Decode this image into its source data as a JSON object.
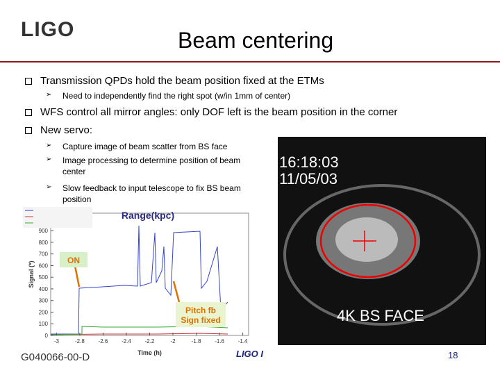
{
  "header": {
    "logo": "LIGO",
    "title": "Beam centering"
  },
  "bullets": [
    {
      "text": "Transmission QPDs hold the beam position fixed at the ETMs",
      "sub": [
        "Need to independently find the right spot (w/in 1mm of center)"
      ]
    },
    {
      "text": "WFS control all mirror angles: only DOF left is the beam position in the corner",
      "sub": []
    },
    {
      "text": "New servo:",
      "sub": [
        "Capture image of beam scatter from BS face",
        "Image processing to determine position of beam center",
        "Slow feedback to input telescope to fix BS beam position"
      ]
    }
  ],
  "chart": {
    "title": "Range(kpc)",
    "xlabel": "Time (h)",
    "ylabel": "Signal (*)",
    "xlim": [
      -3.05,
      -1.35
    ],
    "ylim": [
      0,
      1050
    ],
    "xticks": [
      -3,
      -2.8,
      -2.6,
      -2.4,
      -2.2,
      -2,
      -1.8,
      -1.6,
      -1.4
    ],
    "yticks": [
      0,
      100,
      200,
      300,
      400,
      500,
      600,
      700,
      800,
      900
    ],
    "annotations": [
      {
        "lines": [
          "ON"
        ]
      },
      {
        "lines": [
          "Pitch fb",
          "Sign fixed"
        ]
      }
    ]
  },
  "camera": {
    "time": "16:18:03",
    "date": "11/05/03",
    "label": "4K BS FACE"
  },
  "footer": {
    "doc_id": "G040066-00-D",
    "org": "LIGO I",
    "page": "18"
  }
}
